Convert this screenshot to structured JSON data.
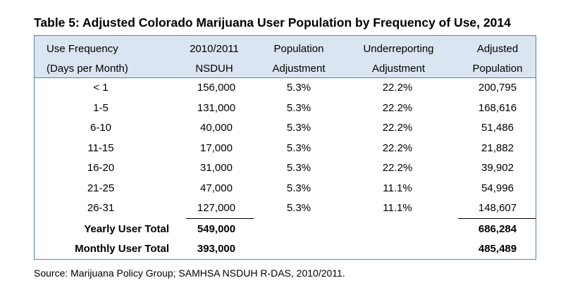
{
  "title": "Table 5:  Adjusted Colorado Marijuana User Population by Frequency of Use, 2014",
  "headers": [
    {
      "line1": "Use Frequency",
      "line2": "(Days per Month)"
    },
    {
      "line1": "2010/2011",
      "line2": "NSDUH"
    },
    {
      "line1": "Population",
      "line2": "Adjustment"
    },
    {
      "line1": "Underreporting",
      "line2": "Adjustment"
    },
    {
      "line1": "Adjusted",
      "line2": "Population"
    }
  ],
  "rows": [
    {
      "freq": "< 1",
      "nsduh": "156,000",
      "pop_adj": "5.3%",
      "under_adj": "22.2%",
      "adjusted": "200,795"
    },
    {
      "freq": "1-5",
      "nsduh": "131,000",
      "pop_adj": "5.3%",
      "under_adj": "22.2%",
      "adjusted": "168,616"
    },
    {
      "freq": "6-10",
      "nsduh": "40,000",
      "pop_adj": "5.3%",
      "under_adj": "22.2%",
      "adjusted": "51,486"
    },
    {
      "freq": "11-15",
      "nsduh": "17,000",
      "pop_adj": "5.3%",
      "under_adj": "22.2%",
      "adjusted": "21,882"
    },
    {
      "freq": "16-20",
      "nsduh": "31,000",
      "pop_adj": "5.3%",
      "under_adj": "22.2%",
      "adjusted": "39,902"
    },
    {
      "freq": "21-25",
      "nsduh": "47,000",
      "pop_adj": "5.3%",
      "under_adj": "11.1%",
      "adjusted": "54,996"
    },
    {
      "freq": "26-31",
      "nsduh": "127,000",
      "pop_adj": "5.3%",
      "under_adj": "11.1%",
      "adjusted": "148,607"
    }
  ],
  "totals": [
    {
      "label": "Yearly User Total",
      "nsduh": "549,000",
      "adjusted": "686,284"
    },
    {
      "label": "Monthly User Total",
      "nsduh": "393,000",
      "adjusted": "485,489"
    }
  ],
  "source": "Source: Marijuana Policy Group; SAMHSA NSDUH R-DAS, 2010/2011."
}
